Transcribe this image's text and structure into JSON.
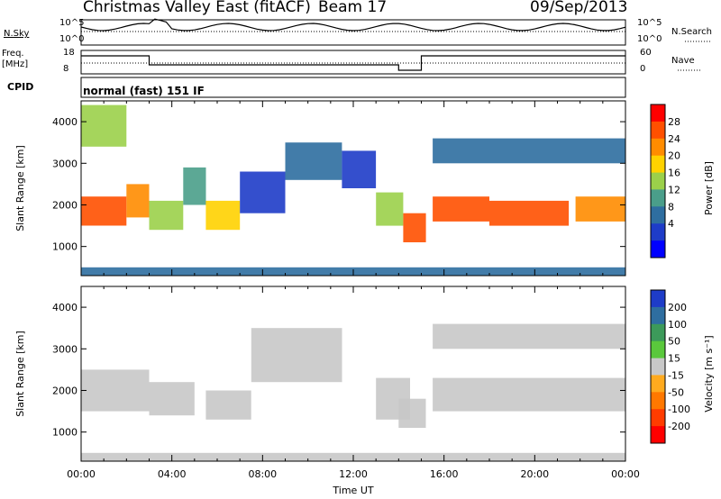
{
  "header": {
    "title": "Christmas Valley East (fitACF)",
    "beam": "Beam 17",
    "date": "09/Sep/2013"
  },
  "summary_panel": {
    "nsky_label": "N.Sky",
    "nsearch_label": "N.Search",
    "freq_label_line1": "Freq.",
    "freq_label_line2": "[MHz]",
    "nave_label": "Nave",
    "cpid_label": "CPID",
    "cpid_text": "normal (fast) 151 IF",
    "noise_ticks": [
      "10^5",
      "10^0"
    ],
    "freq_ticks": [
      "18",
      "8"
    ],
    "nave_ticks": [
      "60",
      "0"
    ]
  },
  "chart_data": [
    {
      "type": "heatmap",
      "name": "power",
      "ylabel": "Slant Range [km]",
      "yticks": [
        "1000",
        "2000",
        "3000",
        "4000"
      ],
      "ylim": [
        300,
        4500
      ],
      "xlim": [
        0,
        24
      ],
      "colorbar_label": "Power [dB]",
      "colorbar_ticks": [
        "28",
        "24",
        "20",
        "16",
        "12",
        "8",
        "4"
      ],
      "colorbar_colors": [
        "#ff0000",
        "#ff5000",
        "#ff8c00",
        "#ffd200",
        "#9bd04a",
        "#4a9e8a",
        "#2e6ea0",
        "#1e3cc8",
        "#0000ff"
      ],
      "regions": [
        {
          "t0": 0.0,
          "t1": 2.0,
          "r0": 1500,
          "r1": 2200,
          "value": 26
        },
        {
          "t0": 2.0,
          "t1": 3.0,
          "r0": 1700,
          "r1": 2500,
          "value": 22
        },
        {
          "t0": 3.0,
          "t1": 4.5,
          "r0": 1400,
          "r1": 2100,
          "value": 14
        },
        {
          "t0": 4.5,
          "t1": 5.5,
          "r0": 2000,
          "r1": 2900,
          "value": 10
        },
        {
          "t0": 5.5,
          "t1": 7.0,
          "r0": 1400,
          "r1": 2100,
          "value": 18
        },
        {
          "t0": 7.0,
          "t1": 9.0,
          "r0": 1800,
          "r1": 2800,
          "value": 4
        },
        {
          "t0": 9.0,
          "t1": 11.5,
          "r0": 2600,
          "r1": 3500,
          "value": 6
        },
        {
          "t0": 11.5,
          "t1": 13.0,
          "r0": 2400,
          "r1": 3300,
          "value": 4
        },
        {
          "t0": 13.0,
          "t1": 14.2,
          "r0": 1500,
          "r1": 2300,
          "value": 16
        },
        {
          "t0": 14.2,
          "t1": 15.2,
          "r0": 1100,
          "r1": 1800,
          "value": 26
        },
        {
          "t0": 15.5,
          "t1": 18.0,
          "r0": 1600,
          "r1": 2200,
          "value": 27
        },
        {
          "t0": 18.0,
          "t1": 21.5,
          "r0": 1500,
          "r1": 2100,
          "value": 26
        },
        {
          "t0": 21.8,
          "t1": 24.0,
          "r0": 1600,
          "r1": 2200,
          "value": 24
        },
        {
          "t0": 15.5,
          "t1": 24.0,
          "r0": 3000,
          "r1": 3600,
          "value": 8
        },
        {
          "t0": 0.0,
          "t1": 2.0,
          "r0": 3400,
          "r1": 4400,
          "value": 16
        },
        {
          "t0": 0.0,
          "t1": 24.0,
          "r0": 300,
          "r1": 500,
          "value": 6
        }
      ]
    },
    {
      "type": "heatmap",
      "name": "velocity",
      "ylabel": "Slant Range [km]",
      "yticks": [
        "1000",
        "2000",
        "3000",
        "4000"
      ],
      "ylim": [
        300,
        4500
      ],
      "xlim": [
        0,
        24
      ],
      "xlabel": "Time UT",
      "xticks": [
        "00:00",
        "04:00",
        "08:00",
        "12:00",
        "16:00",
        "20:00",
        "00:00"
      ],
      "colorbar_label": "Velocity [m s⁻¹]",
      "colorbar_ticks": [
        "200",
        "100",
        "50",
        "15",
        "-15",
        "-50",
        "-100",
        "-200"
      ],
      "colorbar_colors": [
        "#1e3cc8",
        "#2e6ea0",
        "#3c9a5a",
        "#5ac83c",
        "#c8c8c8",
        "#ffaa1e",
        "#ff7800",
        "#ff3c00",
        "#ff0000"
      ],
      "regions": [
        {
          "t0": 0.0,
          "t1": 3.0,
          "r0": 1500,
          "r1": 2500,
          "value": 0
        },
        {
          "t0": 3.0,
          "t1": 5.0,
          "r0": 1400,
          "r1": 2200,
          "value": 0
        },
        {
          "t0": 5.5,
          "t1": 7.5,
          "r0": 1300,
          "r1": 2000,
          "value": 30
        },
        {
          "t0": 7.5,
          "t1": 11.5,
          "r0": 2200,
          "r1": 3500,
          "value": -30
        },
        {
          "t0": 13.0,
          "t1": 14.5,
          "r0": 1300,
          "r1": 2300,
          "value": 30
        },
        {
          "t0": 14.0,
          "t1": 15.2,
          "r0": 1100,
          "r1": 1800,
          "value": 0
        },
        {
          "t0": 15.5,
          "t1": 24.0,
          "r0": 1500,
          "r1": 2300,
          "value": 0
        },
        {
          "t0": 15.5,
          "t1": 24.0,
          "r0": 3000,
          "r1": 3600,
          "value": -30
        },
        {
          "t0": 0.0,
          "t1": 24.0,
          "r0": 300,
          "r1": 500,
          "value": 30
        }
      ]
    }
  ]
}
